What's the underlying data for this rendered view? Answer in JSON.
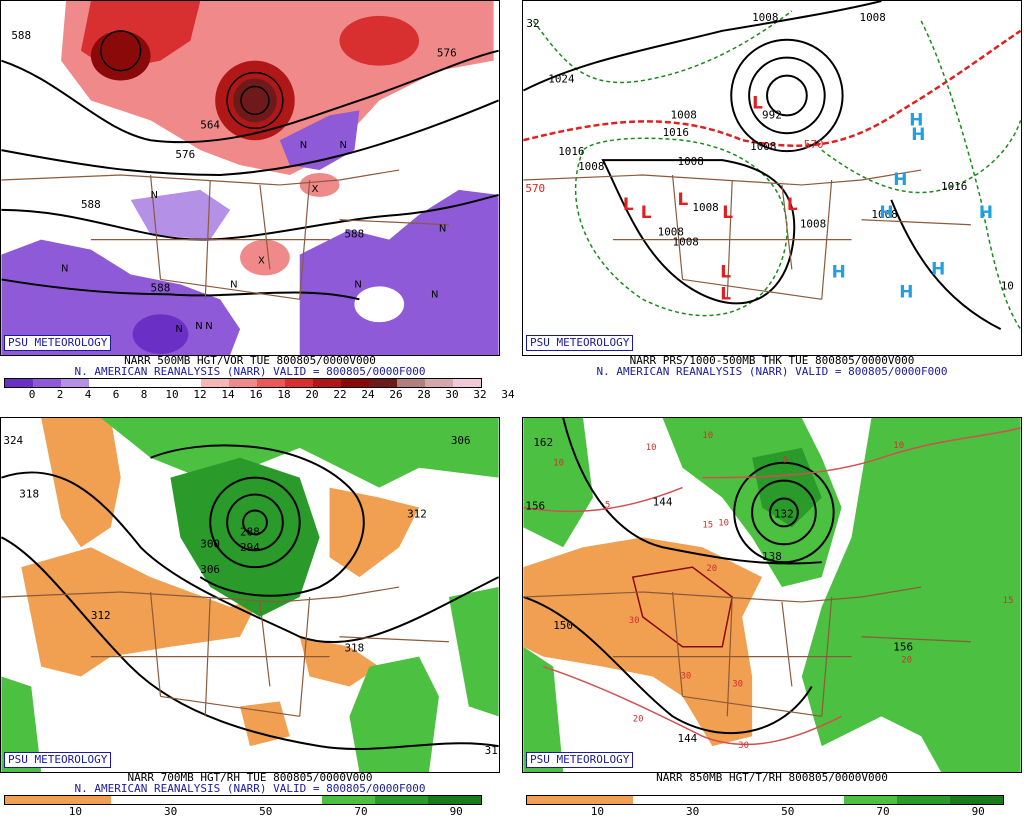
{
  "panels": [
    {
      "logo": "PSU METEOROLOGY",
      "line1": "NARR 500MB HGT/VOR TUE 800805/0000V000",
      "line2": "N. AMERICAN REANALYSIS (NARR) VALID = 800805/0000F000",
      "colorbar": {
        "colors": [
          "#6a2fc4",
          "#8f5ad8",
          "#b490e6",
          "#ffffff",
          "#ffffff",
          "#ffffff",
          "#ffffff",
          "#f7b6b6",
          "#f08a8a",
          "#e85a5a",
          "#d83030",
          "#b01818",
          "#8a0a0a",
          "#6e1a1a",
          "#b08080",
          "#d4a8a8",
          "#f0c8d8"
        ],
        "ticks": [
          "0",
          "2",
          "4",
          "6",
          "8",
          "10",
          "12",
          "14",
          "16",
          "18",
          "20",
          "22",
          "24",
          "26",
          "28",
          "30",
          "32",
          "34"
        ]
      },
      "labels": [
        "588",
        "576",
        "564",
        "588",
        "588",
        "588",
        "576"
      ],
      "vort_marks": [
        "N",
        "N",
        "N",
        "N",
        "N",
        "N",
        "N",
        "N",
        "N",
        "N",
        "N",
        "X",
        "X"
      ]
    },
    {
      "logo": "PSU METEOROLOGY",
      "line1": "NARR PRS/1000-500MB THK TUE 800805/0000V000",
      "line2": "N. AMERICAN REANALYSIS (NARR) VALID = 800805/0000F000",
      "labels": [
        "1024",
        "1016",
        "1008",
        "1008",
        "1008",
        "1008",
        "1008",
        "1008",
        "1008",
        "1008",
        "1016",
        "1016",
        "992",
        "1008",
        "1008",
        "1008",
        "10",
        "32"
      ],
      "thickness_labels": [
        "570",
        "570"
      ],
      "low_symbol": "L",
      "high_symbol": "H"
    },
    {
      "logo": "PSU METEOROLOGY",
      "line1": "NARR 700MB HGT/RH TUE 800805/0000V000",
      "line2": "N. AMERICAN REANALYSIS (NARR) VALID = 800805/0000F000",
      "colorbar": {
        "colors": [
          "#f0a050",
          "#f0a050",
          "#ffffff",
          "#ffffff",
          "#ffffff",
          "#ffffff",
          "#4cc040",
          "#2a9a2a",
          "#1a7a1a"
        ],
        "ticks": [
          "10",
          "30",
          "50",
          "70",
          "90"
        ]
      },
      "labels": [
        "324",
        "318",
        "306",
        "306",
        "312",
        "312",
        "318",
        "300",
        "294",
        "288",
        "31"
      ]
    },
    {
      "logo": "PSU METEOROLOGY",
      "line1": "NARR 850MB HGT/T/RH 800805/0000V000",
      "line2": "",
      "colorbar": {
        "colors": [
          "#f0a050",
          "#f0a050",
          "#ffffff",
          "#ffffff",
          "#ffffff",
          "#ffffff",
          "#4cc040",
          "#2a9a2a",
          "#1a7a1a"
        ],
        "ticks": [
          "10",
          "30",
          "50",
          "70",
          "90"
        ]
      },
      "labels": [
        "162",
        "156",
        "150",
        "144",
        "144",
        "138",
        "156",
        "132"
      ],
      "temp_boxes": [
        "10",
        "10",
        "10",
        "5",
        "5",
        "15",
        "10",
        "20",
        "30",
        "30",
        "30",
        "20",
        "20",
        "15",
        "10",
        "30"
      ]
    }
  ]
}
